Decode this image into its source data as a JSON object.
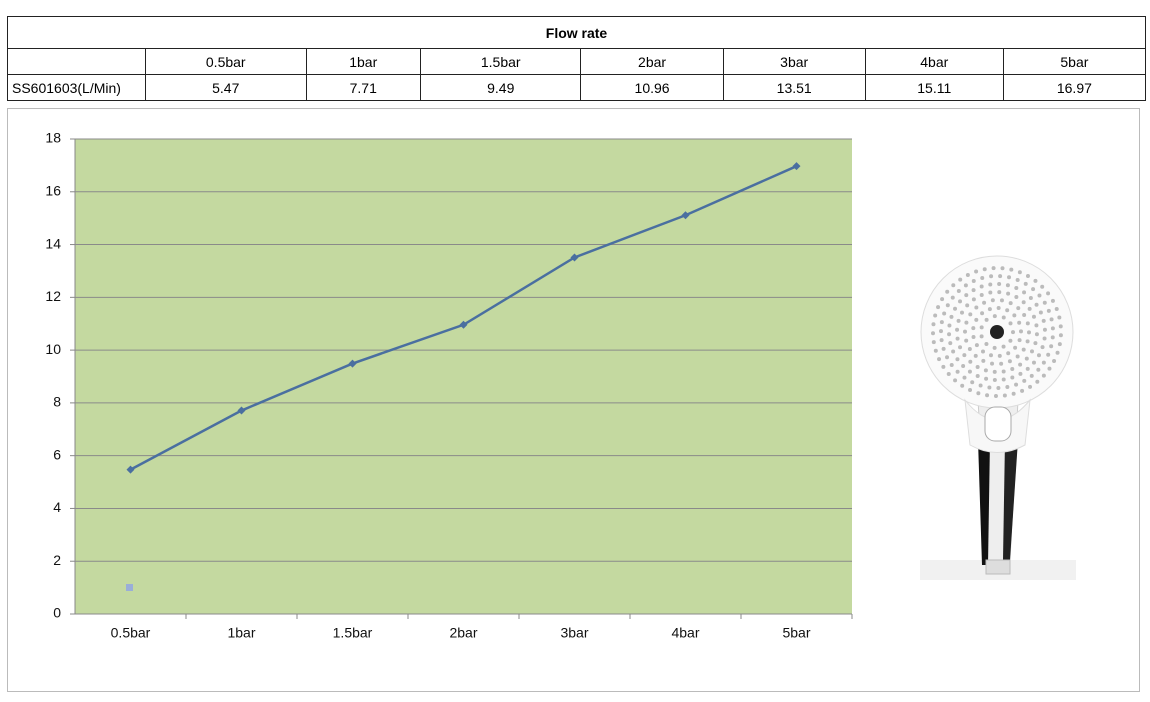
{
  "table": {
    "title": "Flow rate",
    "header": [
      "0.5bar",
      "1bar",
      "1.5bar",
      "2bar",
      "3bar",
      "4bar",
      "5bar"
    ],
    "rows": [
      [
        "SS601603(L/Min)",
        "5.47",
        "7.71",
        "9.49",
        "10.96",
        "13.51",
        "15.11",
        "16.97"
      ]
    ]
  },
  "chart_data": {
    "type": "line",
    "categories": [
      "0.5bar",
      "1bar",
      "1.5bar",
      "2bar",
      "3bar",
      "4bar",
      "5bar"
    ],
    "values": [
      5.47,
      7.71,
      9.49,
      10.96,
      13.51,
      15.11,
      16.97
    ],
    "color": "#4a6fa0",
    "ylim": [
      0,
      18
    ],
    "yticks": [
      0,
      2,
      4,
      6,
      8,
      10,
      12,
      14,
      16,
      18
    ],
    "grid": true
  }
}
